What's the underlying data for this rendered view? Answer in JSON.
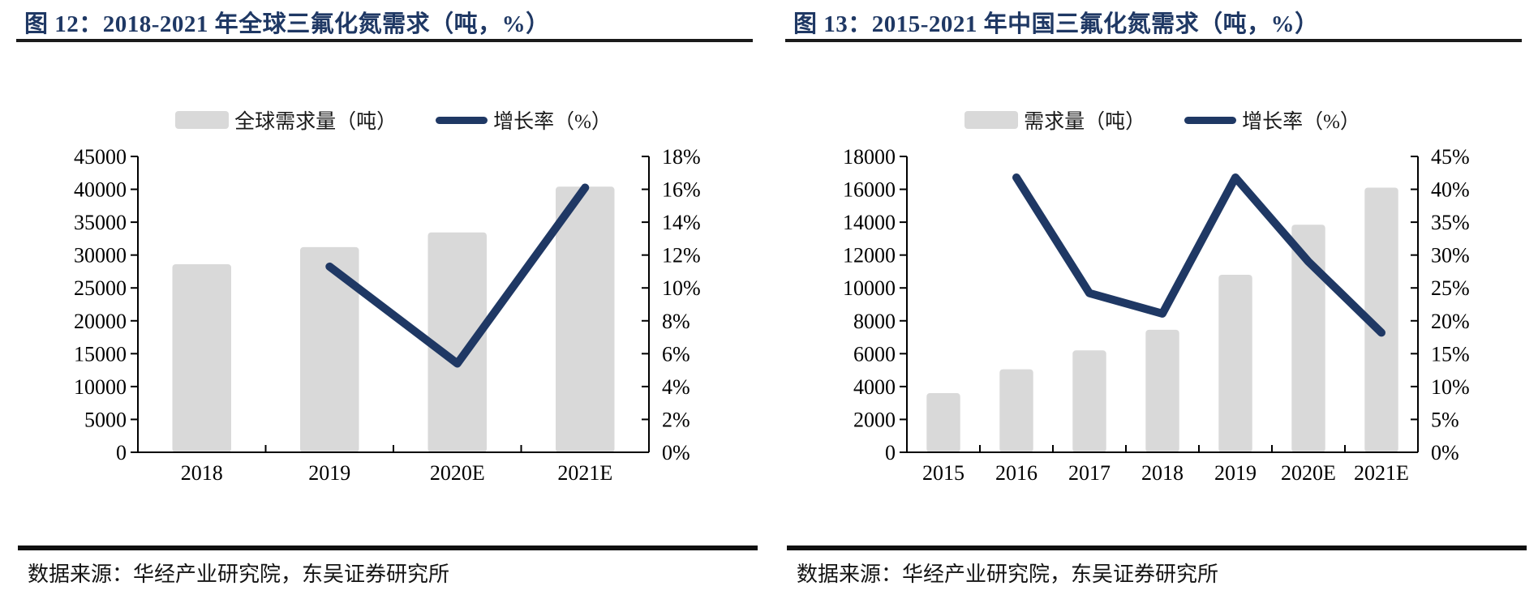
{
  "colors": {
    "bar": "#d9d9d9",
    "line": "#1f3864",
    "title": "#1f3864",
    "axis": "#000000",
    "rule": "#1b1b1b"
  },
  "panels": [
    {
      "title": "图 12：2018-2021 年全球三氟化氮需求（吨，%）",
      "legend": [
        {
          "label": "全球需求量（吨）",
          "marker": "bar-swatch"
        },
        {
          "label": "增长率（%）",
          "marker": "line-swatch"
        }
      ],
      "source": "数据来源：华经产业研究院，东吴证券研究所"
    },
    {
      "title": "图 13：2015-2021 年中国三氟化氮需求（吨，%）",
      "legend": [
        {
          "label": "需求量（吨）",
          "marker": "bar-swatch"
        },
        {
          "label": "增长率（%）",
          "marker": "line-swatch"
        }
      ],
      "source": "数据来源：华经产业研究院，东吴证券研究所"
    }
  ],
  "chart_data": [
    {
      "type": "bar+line",
      "title": "图 12：2018-2021 年全球三氟化氮需求（吨，%）",
      "categories": [
        "2018",
        "2019",
        "2020E",
        "2021E"
      ],
      "series": [
        {
          "name": "全球需求量（吨）",
          "type": "bar",
          "axis": "left",
          "values": [
            28600,
            31200,
            33450,
            40400
          ]
        },
        {
          "name": "增长率（%）",
          "type": "line",
          "axis": "right",
          "values": [
            null,
            11.3,
            5.4,
            16.1
          ]
        }
      ],
      "left_axis": {
        "min": 0,
        "max": 45000,
        "step": 5000
      },
      "right_axis": {
        "min": 0,
        "max": 18,
        "step": 2,
        "unit": "%"
      },
      "grid": false,
      "legend_position": "top"
    },
    {
      "type": "bar+line",
      "title": "图 13：2015-2021 年中国三氟化氮需求（吨，%）",
      "categories": [
        "2015",
        "2016",
        "2017",
        "2018",
        "2019",
        "2020E",
        "2021E"
      ],
      "series": [
        {
          "name": "需求量（吨）",
          "type": "bar",
          "axis": "left",
          "values": [
            3600,
            5050,
            6200,
            7450,
            10800,
            13850,
            16100
          ]
        },
        {
          "name": "增长率（%）",
          "type": "line",
          "axis": "right",
          "values": [
            null,
            41.8,
            24.2,
            21.1,
            41.8,
            29.0,
            18.2
          ]
        }
      ],
      "left_axis": {
        "min": 0,
        "max": 18000,
        "step": 2000
      },
      "right_axis": {
        "min": 0,
        "max": 45,
        "step": 5,
        "unit": "%"
      },
      "grid": false,
      "legend_position": "top"
    }
  ]
}
